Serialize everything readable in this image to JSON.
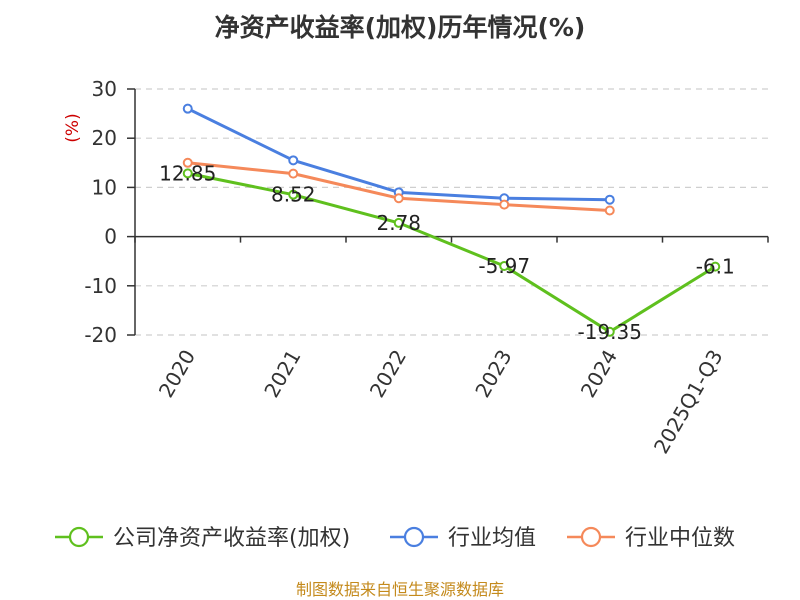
{
  "chart_data": {
    "type": "line",
    "title": "净资产收益率(加权)历年情况(%)",
    "ylabel": "(%)",
    "xlabel": "",
    "categories": [
      "2020",
      "2021",
      "2022",
      "2023",
      "2024",
      "2025Q1-Q3"
    ],
    "ylim": [
      -20,
      30
    ],
    "yticks": [
      30,
      20,
      10,
      0,
      -10,
      -20
    ],
    "grid": true,
    "legend_position": "bottom",
    "series": [
      {
        "name": "公司净资产收益率(加权)",
        "color": "#5fc01e",
        "values": [
          12.85,
          8.52,
          2.78,
          -5.97,
          -19.35,
          -6.1
        ],
        "labels": [
          "12.85",
          "8.52",
          "2.78",
          "-5.97",
          "-19.35",
          "-6.1"
        ]
      },
      {
        "name": "行业均值",
        "color": "#4a7fe0",
        "values": [
          26.0,
          15.5,
          9.0,
          7.8,
          7.5,
          null
        ]
      },
      {
        "name": "行业中位数",
        "color": "#f5895a",
        "values": [
          15.0,
          12.8,
          7.8,
          6.5,
          5.3,
          null
        ]
      }
    ]
  },
  "source_text": "制图数据来自恒生聚源数据库"
}
